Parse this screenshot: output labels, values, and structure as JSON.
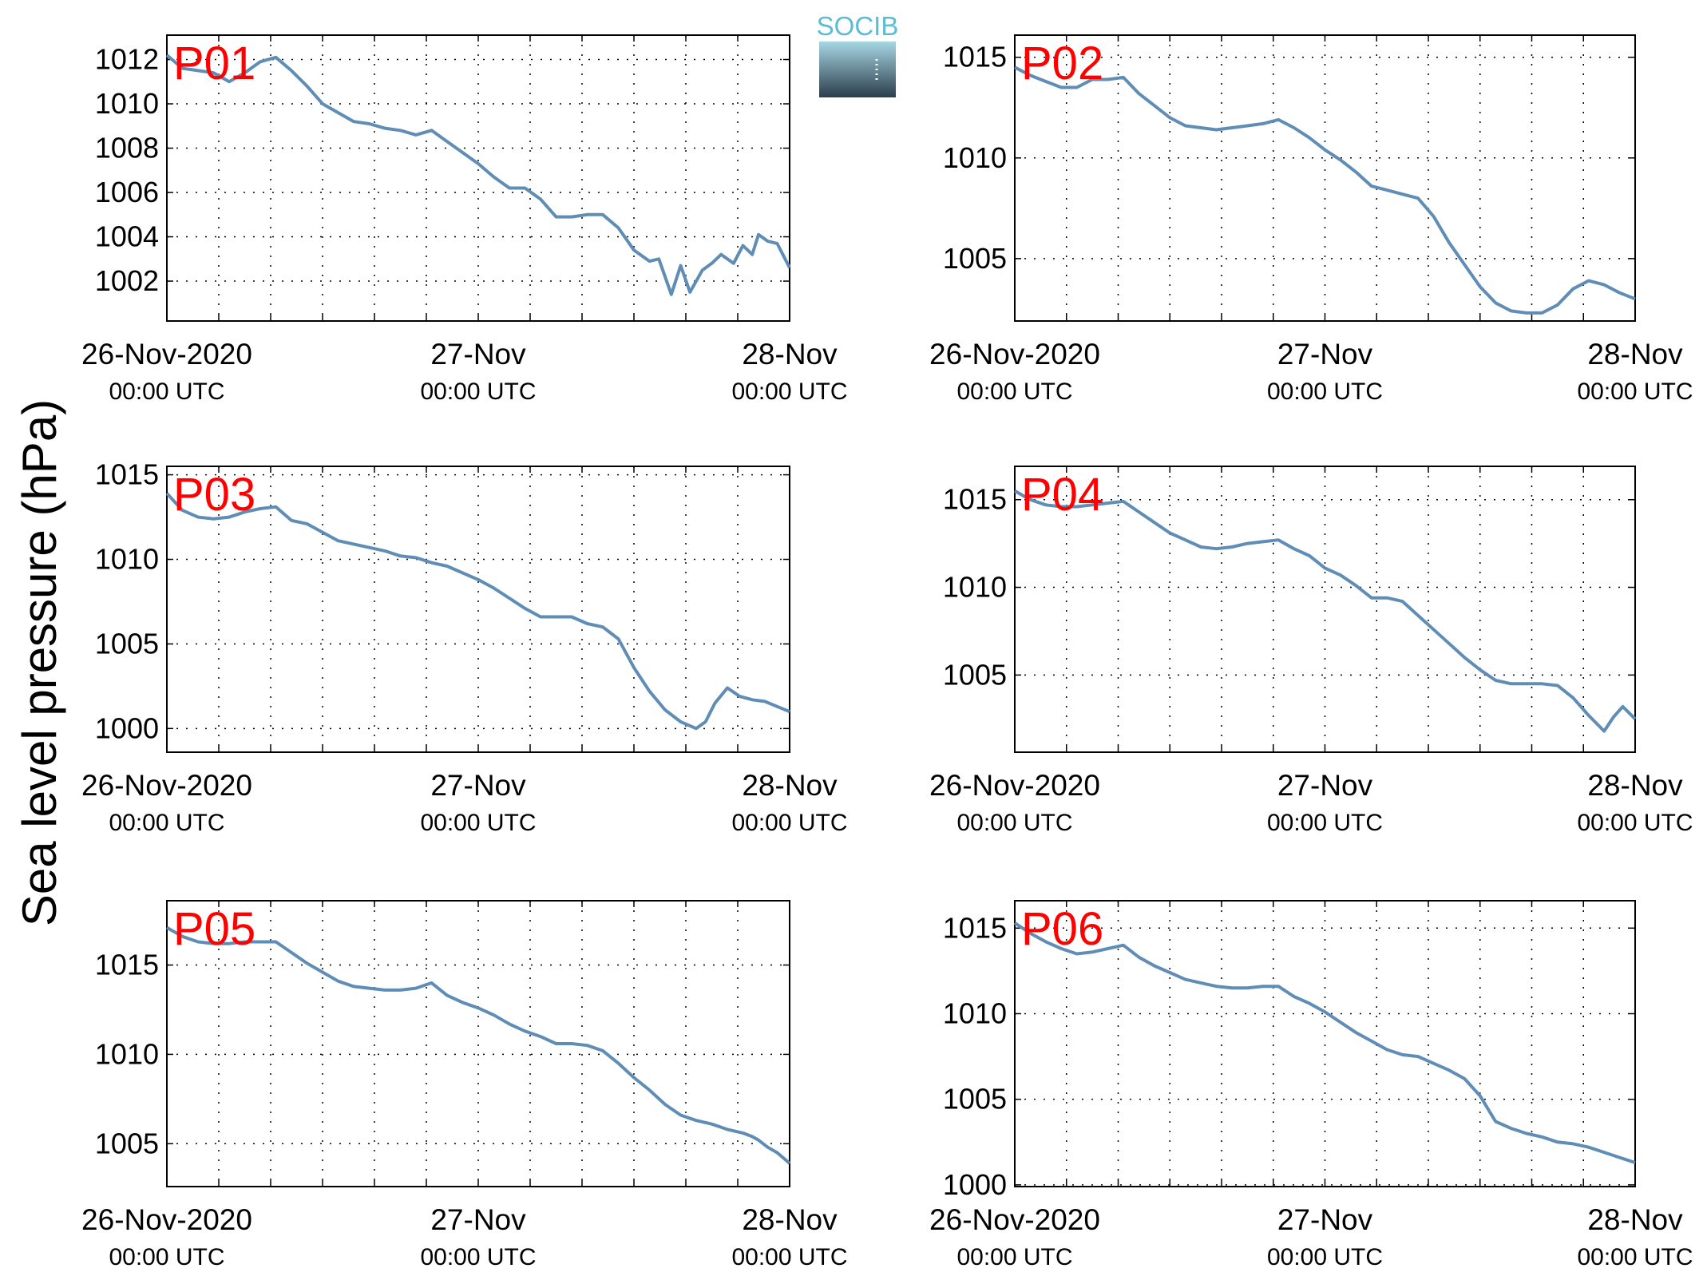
{
  "figure": {
    "ylabel": "Sea level pressure (hPa)",
    "logo": {
      "text": "SOCIB",
      "text_color": "#5bbcd6",
      "gradient_top": "#a7d6e3",
      "gradient_bottom": "#2c3e4c"
    },
    "series_color": "#5f8db5",
    "label_color": "#ff0000",
    "x_ticks": [
      {
        "day": 0,
        "line1": "26-Nov-2020",
        "line2": "00:00 UTC"
      },
      {
        "day": 1,
        "line1": "27-Nov",
        "line2": "00:00 UTC"
      },
      {
        "day": 2,
        "line1": "28-Nov",
        "line2": "00:00 UTC"
      }
    ]
  },
  "chart_data": [
    {
      "type": "line",
      "label": "P01",
      "xlim": [
        0,
        2
      ],
      "ylim": [
        1000.2,
        1013.1
      ],
      "yticks": [
        1002,
        1004,
        1006,
        1008,
        1010,
        1012
      ],
      "yticklabels": [
        "1002",
        "1004",
        "1006",
        "1008",
        "1010",
        "1012"
      ],
      "x_unit": "days since 26-Nov-2020 00:00 UTC",
      "points": [
        [
          0,
          1012.2
        ],
        [
          0.05,
          1011.6
        ],
        [
          0.1,
          1011.5
        ],
        [
          0.15,
          1011.4
        ],
        [
          0.2,
          1011.0
        ],
        [
          0.25,
          1011.4
        ],
        [
          0.3,
          1011.9
        ],
        [
          0.35,
          1012.1
        ],
        [
          0.4,
          1011.5
        ],
        [
          0.45,
          1010.8
        ],
        [
          0.5,
          1010.0
        ],
        [
          0.55,
          1009.6
        ],
        [
          0.6,
          1009.2
        ],
        [
          0.65,
          1009.1
        ],
        [
          0.7,
          1008.9
        ],
        [
          0.75,
          1008.8
        ],
        [
          0.8,
          1008.6
        ],
        [
          0.85,
          1008.8
        ],
        [
          0.9,
          1008.3
        ],
        [
          0.95,
          1007.8
        ],
        [
          1.0,
          1007.3
        ],
        [
          1.05,
          1006.7
        ],
        [
          1.1,
          1006.2
        ],
        [
          1.15,
          1006.2
        ],
        [
          1.2,
          1005.7
        ],
        [
          1.25,
          1004.9
        ],
        [
          1.3,
          1004.9
        ],
        [
          1.35,
          1005.0
        ],
        [
          1.4,
          1005.0
        ],
        [
          1.45,
          1004.4
        ],
        [
          1.5,
          1003.4
        ],
        [
          1.55,
          1002.9
        ],
        [
          1.58,
          1003.0
        ],
        [
          1.62,
          1001.4
        ],
        [
          1.65,
          1002.7
        ],
        [
          1.68,
          1001.5
        ],
        [
          1.72,
          1002.5
        ],
        [
          1.75,
          1002.8
        ],
        [
          1.78,
          1003.2
        ],
        [
          1.82,
          1002.8
        ],
        [
          1.85,
          1003.6
        ],
        [
          1.88,
          1003.2
        ],
        [
          1.9,
          1004.1
        ],
        [
          1.93,
          1003.8
        ],
        [
          1.96,
          1003.7
        ],
        [
          2.0,
          1002.6
        ]
      ]
    },
    {
      "type": "line",
      "label": "P02",
      "xlim": [
        0,
        2
      ],
      "ylim": [
        1001.9,
        1016.1
      ],
      "yticks": [
        1005,
        1010,
        1015
      ],
      "yticklabels": [
        "1005",
        "1010",
        "1015"
      ],
      "x_unit": "days since 26-Nov-2020 00:00 UTC",
      "points": [
        [
          0,
          1014.5
        ],
        [
          0.05,
          1014.1
        ],
        [
          0.1,
          1013.8
        ],
        [
          0.15,
          1013.5
        ],
        [
          0.2,
          1013.5
        ],
        [
          0.25,
          1013.9
        ],
        [
          0.3,
          1013.9
        ],
        [
          0.35,
          1014.0
        ],
        [
          0.4,
          1013.2
        ],
        [
          0.45,
          1012.6
        ],
        [
          0.5,
          1012.0
        ],
        [
          0.55,
          1011.6
        ],
        [
          0.6,
          1011.5
        ],
        [
          0.65,
          1011.4
        ],
        [
          0.7,
          1011.5
        ],
        [
          0.75,
          1011.6
        ],
        [
          0.8,
          1011.7
        ],
        [
          0.85,
          1011.9
        ],
        [
          0.9,
          1011.5
        ],
        [
          0.95,
          1011.0
        ],
        [
          1.0,
          1010.4
        ],
        [
          1.05,
          1009.9
        ],
        [
          1.1,
          1009.3
        ],
        [
          1.15,
          1008.6
        ],
        [
          1.2,
          1008.4
        ],
        [
          1.25,
          1008.2
        ],
        [
          1.3,
          1008.0
        ],
        [
          1.35,
          1007.1
        ],
        [
          1.4,
          1005.8
        ],
        [
          1.45,
          1004.7
        ],
        [
          1.5,
          1003.6
        ],
        [
          1.55,
          1002.8
        ],
        [
          1.6,
          1002.4
        ],
        [
          1.65,
          1002.3
        ],
        [
          1.7,
          1002.3
        ],
        [
          1.75,
          1002.7
        ],
        [
          1.8,
          1003.5
        ],
        [
          1.85,
          1003.9
        ],
        [
          1.9,
          1003.7
        ],
        [
          1.95,
          1003.3
        ],
        [
          2.0,
          1003.0
        ]
      ]
    },
    {
      "type": "line",
      "label": "P03",
      "xlim": [
        0,
        2
      ],
      "ylim": [
        998.6,
        1015.5
      ],
      "yticks": [
        1000,
        1005,
        1010,
        1015
      ],
      "yticklabels": [
        "1000",
        "1005",
        "1010",
        "1015"
      ],
      "x_unit": "days since 26-Nov-2020 00:00 UTC",
      "points": [
        [
          0,
          1013.9
        ],
        [
          0.05,
          1012.9
        ],
        [
          0.1,
          1012.5
        ],
        [
          0.15,
          1012.4
        ],
        [
          0.2,
          1012.5
        ],
        [
          0.25,
          1012.8
        ],
        [
          0.3,
          1013.0
        ],
        [
          0.35,
          1013.1
        ],
        [
          0.4,
          1012.3
        ],
        [
          0.45,
          1012.1
        ],
        [
          0.5,
          1011.6
        ],
        [
          0.55,
          1011.1
        ],
        [
          0.6,
          1010.9
        ],
        [
          0.65,
          1010.7
        ],
        [
          0.7,
          1010.5
        ],
        [
          0.75,
          1010.2
        ],
        [
          0.8,
          1010.1
        ],
        [
          0.85,
          1009.8
        ],
        [
          0.9,
          1009.6
        ],
        [
          0.95,
          1009.2
        ],
        [
          1.0,
          1008.8
        ],
        [
          1.05,
          1008.3
        ],
        [
          1.1,
          1007.7
        ],
        [
          1.15,
          1007.1
        ],
        [
          1.2,
          1006.6
        ],
        [
          1.25,
          1006.6
        ],
        [
          1.3,
          1006.6
        ],
        [
          1.35,
          1006.2
        ],
        [
          1.4,
          1006.0
        ],
        [
          1.45,
          1005.3
        ],
        [
          1.5,
          1003.6
        ],
        [
          1.55,
          1002.2
        ],
        [
          1.6,
          1001.1
        ],
        [
          1.65,
          1000.4
        ],
        [
          1.7,
          1000.0
        ],
        [
          1.73,
          1000.4
        ],
        [
          1.76,
          1001.5
        ],
        [
          1.8,
          1002.4
        ],
        [
          1.84,
          1001.9
        ],
        [
          1.88,
          1001.7
        ],
        [
          1.92,
          1001.6
        ],
        [
          1.96,
          1001.3
        ],
        [
          2.0,
          1001.0
        ]
      ]
    },
    {
      "type": "line",
      "label": "P04",
      "xlim": [
        0,
        2
      ],
      "ylim": [
        1000.6,
        1016.9
      ],
      "yticks": [
        1005,
        1010,
        1015
      ],
      "yticklabels": [
        "1005",
        "1010",
        "1015"
      ],
      "x_unit": "days since 26-Nov-2020 00:00 UTC",
      "points": [
        [
          0,
          1015.5
        ],
        [
          0.05,
          1015.0
        ],
        [
          0.1,
          1014.7
        ],
        [
          0.15,
          1014.6
        ],
        [
          0.2,
          1014.6
        ],
        [
          0.25,
          1014.7
        ],
        [
          0.3,
          1014.8
        ],
        [
          0.35,
          1014.9
        ],
        [
          0.4,
          1014.3
        ],
        [
          0.45,
          1013.7
        ],
        [
          0.5,
          1013.1
        ],
        [
          0.55,
          1012.7
        ],
        [
          0.6,
          1012.3
        ],
        [
          0.65,
          1012.2
        ],
        [
          0.7,
          1012.3
        ],
        [
          0.75,
          1012.5
        ],
        [
          0.8,
          1012.6
        ],
        [
          0.85,
          1012.7
        ],
        [
          0.9,
          1012.2
        ],
        [
          0.95,
          1011.8
        ],
        [
          1.0,
          1011.1
        ],
        [
          1.05,
          1010.7
        ],
        [
          1.1,
          1010.1
        ],
        [
          1.15,
          1009.4
        ],
        [
          1.2,
          1009.4
        ],
        [
          1.25,
          1009.2
        ],
        [
          1.3,
          1008.4
        ],
        [
          1.35,
          1007.6
        ],
        [
          1.4,
          1006.8
        ],
        [
          1.45,
          1006.0
        ],
        [
          1.5,
          1005.3
        ],
        [
          1.55,
          1004.7
        ],
        [
          1.6,
          1004.5
        ],
        [
          1.65,
          1004.5
        ],
        [
          1.7,
          1004.5
        ],
        [
          1.75,
          1004.4
        ],
        [
          1.8,
          1003.7
        ],
        [
          1.85,
          1002.7
        ],
        [
          1.9,
          1001.8
        ],
        [
          1.93,
          1002.6
        ],
        [
          1.96,
          1003.2
        ],
        [
          2.0,
          1002.5
        ]
      ]
    },
    {
      "type": "line",
      "label": "P05",
      "xlim": [
        0,
        2
      ],
      "ylim": [
        1002.6,
        1018.6
      ],
      "yticks": [
        1005,
        1010,
        1015
      ],
      "yticklabels": [
        "1005",
        "1010",
        "1015"
      ],
      "x_unit": "days since 26-Nov-2020 00:00 UTC",
      "points": [
        [
          0,
          1017.1
        ],
        [
          0.05,
          1016.6
        ],
        [
          0.1,
          1016.3
        ],
        [
          0.15,
          1016.2
        ],
        [
          0.2,
          1016.2
        ],
        [
          0.25,
          1016.3
        ],
        [
          0.3,
          1016.3
        ],
        [
          0.35,
          1016.3
        ],
        [
          0.4,
          1015.7
        ],
        [
          0.45,
          1015.1
        ],
        [
          0.5,
          1014.6
        ],
        [
          0.55,
          1014.1
        ],
        [
          0.6,
          1013.8
        ],
        [
          0.65,
          1013.7
        ],
        [
          0.7,
          1013.6
        ],
        [
          0.75,
          1013.6
        ],
        [
          0.8,
          1013.7
        ],
        [
          0.85,
          1014.0
        ],
        [
          0.9,
          1013.3
        ],
        [
          0.95,
          1012.9
        ],
        [
          1.0,
          1012.6
        ],
        [
          1.05,
          1012.2
        ],
        [
          1.1,
          1011.7
        ],
        [
          1.15,
          1011.3
        ],
        [
          1.2,
          1011.0
        ],
        [
          1.25,
          1010.6
        ],
        [
          1.3,
          1010.6
        ],
        [
          1.35,
          1010.5
        ],
        [
          1.4,
          1010.2
        ],
        [
          1.45,
          1009.5
        ],
        [
          1.5,
          1008.7
        ],
        [
          1.55,
          1008.0
        ],
        [
          1.6,
          1007.2
        ],
        [
          1.65,
          1006.6
        ],
        [
          1.7,
          1006.3
        ],
        [
          1.75,
          1006.1
        ],
        [
          1.8,
          1005.8
        ],
        [
          1.85,
          1005.6
        ],
        [
          1.88,
          1005.4
        ],
        [
          1.9,
          1005.2
        ],
        [
          1.93,
          1004.8
        ],
        [
          1.96,
          1004.5
        ],
        [
          2.0,
          1003.9
        ]
      ]
    },
    {
      "type": "line",
      "label": "P06",
      "xlim": [
        0,
        2
      ],
      "ylim": [
        999.9,
        1016.6
      ],
      "yticks": [
        1000,
        1005,
        1010,
        1015
      ],
      "yticklabels": [
        "1000",
        "1005",
        "1010",
        "1015"
      ],
      "x_unit": "days since 26-Nov-2020 00:00 UTC",
      "points": [
        [
          0,
          1015.3
        ],
        [
          0.05,
          1014.7
        ],
        [
          0.1,
          1014.2
        ],
        [
          0.15,
          1013.8
        ],
        [
          0.2,
          1013.5
        ],
        [
          0.25,
          1013.6
        ],
        [
          0.3,
          1013.8
        ],
        [
          0.35,
          1014.0
        ],
        [
          0.4,
          1013.3
        ],
        [
          0.45,
          1012.8
        ],
        [
          0.5,
          1012.4
        ],
        [
          0.55,
          1012.0
        ],
        [
          0.6,
          1011.8
        ],
        [
          0.65,
          1011.6
        ],
        [
          0.7,
          1011.5
        ],
        [
          0.75,
          1011.5
        ],
        [
          0.8,
          1011.6
        ],
        [
          0.85,
          1011.6
        ],
        [
          0.9,
          1011.0
        ],
        [
          0.95,
          1010.6
        ],
        [
          1.0,
          1010.1
        ],
        [
          1.05,
          1009.5
        ],
        [
          1.1,
          1008.9
        ],
        [
          1.15,
          1008.4
        ],
        [
          1.2,
          1007.9
        ],
        [
          1.25,
          1007.6
        ],
        [
          1.3,
          1007.5
        ],
        [
          1.35,
          1007.1
        ],
        [
          1.4,
          1006.7
        ],
        [
          1.45,
          1006.2
        ],
        [
          1.5,
          1005.2
        ],
        [
          1.55,
          1003.7
        ],
        [
          1.6,
          1003.3
        ],
        [
          1.65,
          1003.0
        ],
        [
          1.7,
          1002.8
        ],
        [
          1.75,
          1002.5
        ],
        [
          1.8,
          1002.4
        ],
        [
          1.85,
          1002.2
        ],
        [
          1.9,
          1001.9
        ],
        [
          1.95,
          1001.6
        ],
        [
          2.0,
          1001.3
        ]
      ]
    }
  ]
}
